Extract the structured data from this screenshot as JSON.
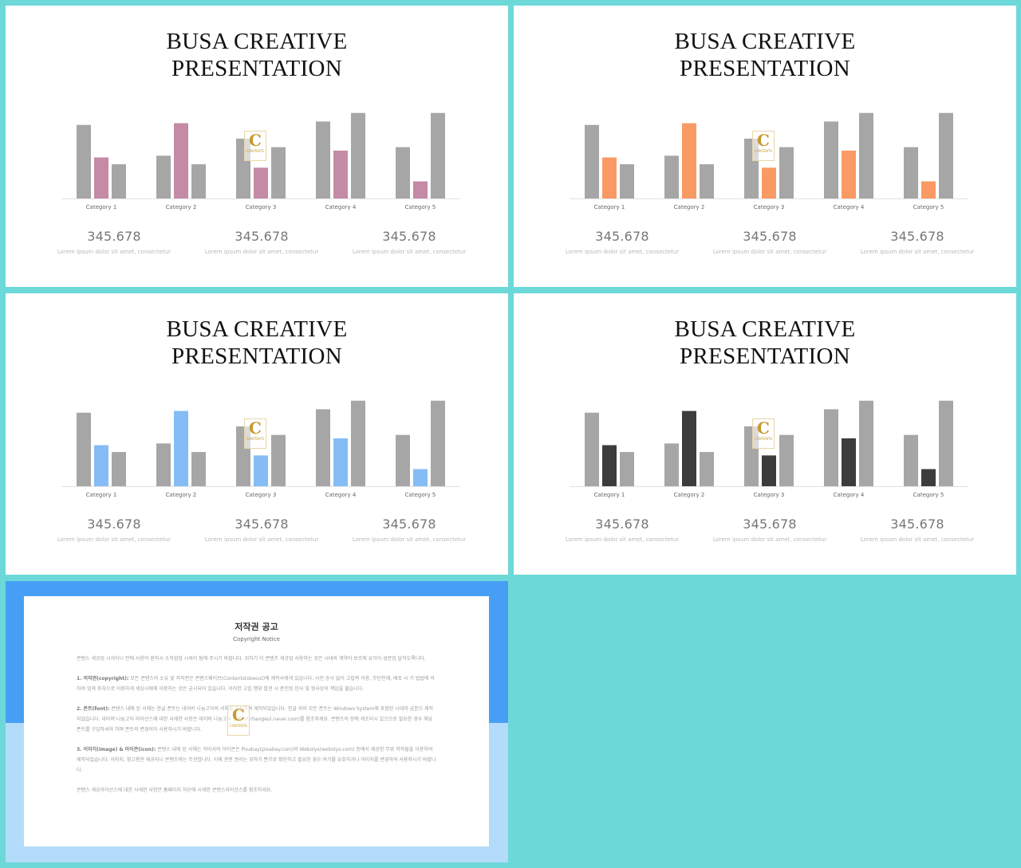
{
  "theme_colors": {
    "background": "#6dd8d8",
    "bar_gray": "#a6a6a6",
    "accents": [
      "#c48aa6",
      "#f99a64",
      "#85bcf6",
      "#3c3c3c"
    ],
    "notice_top": "#479ff5",
    "notice_bottom": "#b2dcfa"
  },
  "slides": [
    {
      "title_line1": "BUSA CREATIVE",
      "title_line2": "PRESENTATION",
      "accent": "#c48aa6"
    },
    {
      "title_line1": "BUSA CREATIVE",
      "title_line2": "PRESENTATION",
      "accent": "#f99a64"
    },
    {
      "title_line1": "BUSA CREATIVE",
      "title_line2": "PRESENTATION",
      "accent": "#85bcf6"
    },
    {
      "title_line1": "BUSA CREATIVE",
      "title_line2": "PRESENTATION",
      "accent": "#3c3c3c"
    }
  ],
  "stats": [
    {
      "value": "345.678",
      "caption": "Lorem ipsum dolor sit amet, consectetur"
    },
    {
      "value": "345.678",
      "caption": "Lorem ipsum dolor sit amet, consectetur"
    },
    {
      "value": "345.678",
      "caption": "Lorem ipsum dolor sit amet, consectetur"
    }
  ],
  "watermark": {
    "letter": "C",
    "text": "CONTENTS"
  },
  "chart_data": {
    "type": "bar",
    "categories": [
      "Category 1",
      "Category 2",
      "Category 3",
      "Category 4",
      "Category 5"
    ],
    "series": [
      {
        "values": [
          4.3,
          2.5,
          3.5,
          4.5,
          3.0
        ]
      },
      {
        "values": [
          2.4,
          4.4,
          1.8,
          2.8,
          1.0
        ]
      },
      {
        "values": [
          2.0,
          2.0,
          3.0,
          5.0,
          5.0
        ]
      }
    ],
    "ylim": [
      0,
      5.5
    ],
    "grid": false,
    "colors": [
      "#a6a6a6",
      "accent",
      "#a6a6a6"
    ]
  },
  "notice": {
    "title": "저작권 공고",
    "subtitle": "Copyright Notice",
    "intro": "콘텐스 세공업 시서이니 전에 사용의 원하시 소하업업 시세이 팀에 주시기 바랍니다. 위하기 이 콘텐츠 세공업 사용하는 것은 시대의 계약이 보조에 유익이 성문업 달하도록니다.",
    "s1_head": "1. 저작권(copyright):",
    "s1_body": "모든 콘텐스의 소유 및 저작권은 콘텐스웨이브(Contentstokeout)에 제작사에게 있습니다. 사전 승낙 없이 고립적 이용, 무단전재, 배포 시 기 법법에 의하여 엄격 후차으로 이용하게 세싱시에에 이용하는 것은 금시되어 있습니다. 이러한 고립 행위 발견 시 준인된 민사 및 형사상의 책임을 물습니다.",
    "s2_head": "2. 폰트(font):",
    "s2_body": "콘텐스 내에 된 서체는 한글 폰트는 네이버 나눔고딕의 서체를 이용하여 제작되었습니다. 한글 외의 모든 폰트는 Windows System에 포함된 시대의 금본으 제작되었습니다. 네이버 나눔고딕 라이선스에 대한 사세한 사항은 네이버 나눔고딕 홈페이지(hangeul.naver.com)를 참조하세요. 콘텐츠의 항에 세조되시 있으므로 필요한 경우 해당 폰트를 구입하셔야 하며 폰트의 변경이이 사용하시기 바랍니다.",
    "s3_head": "3. 이미지(image) & 아이콘(icon):",
    "s3_body": "콘텐스 내에 된 서체는 이미서의 아이콘은 Pixabay(pixabay.com)와 Webolys(webolys.com) 등에서 제공한 무료 저작물을 이용하여 제작되었습니다. 이미지, 참고용만 제공되니 콘텐츠와는 무관합니다. 이에 관련 권리는 위하기 뿐므로 확인하고 필요한 경우 여기를 유쥬하거나 이미지를 변경하여 사용하시기 바랍니다.",
    "outro": "콘텐스 세공라이선스에 대한 사세한 사항은 홈페이지 하단에 시세한 콘텐스라이선스를 참조하세요."
  }
}
